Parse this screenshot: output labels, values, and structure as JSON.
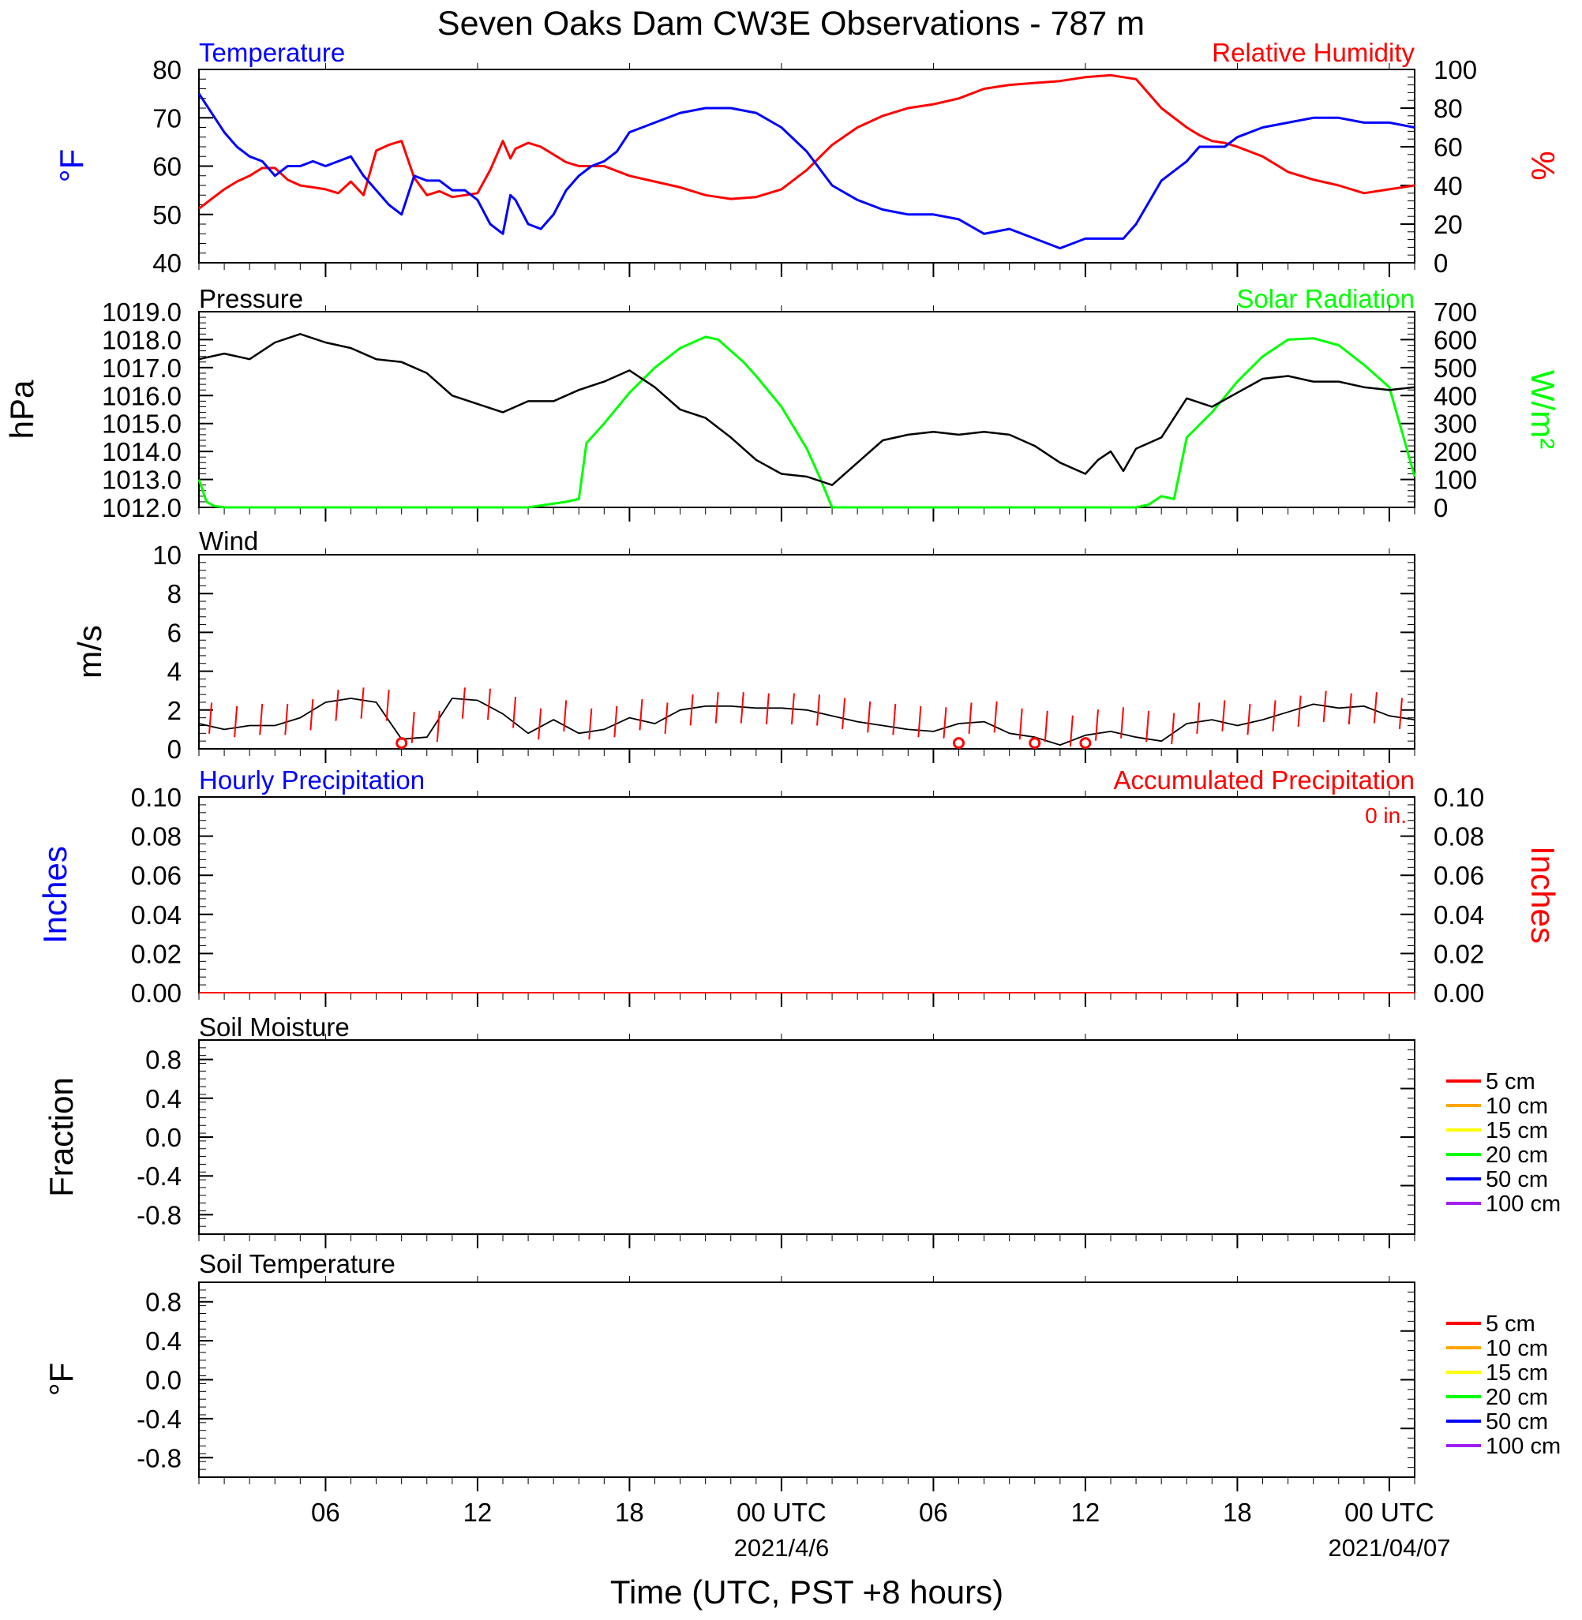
{
  "title": "Seven Oaks Dam CW3E Observations - 787 m",
  "xaxis": {
    "label": "Time (UTC, PST +8 hours)",
    "start_utc": "2021-04-05 01:00",
    "end_utc": "2021-04-07 01:00",
    "ticks": [
      {
        "hour": 6,
        "label": "06"
      },
      {
        "hour": 12,
        "label": "12"
      },
      {
        "hour": 18,
        "label": "18"
      },
      {
        "hour": 24,
        "label": "00 UTC",
        "date": "2021/4/6"
      },
      {
        "hour": 30,
        "label": "06"
      },
      {
        "hour": 36,
        "label": "12"
      },
      {
        "hour": 42,
        "label": "18"
      },
      {
        "hour": 48,
        "label": "00 UTC",
        "date": "2021/04/07"
      }
    ]
  },
  "colors": {
    "temperature": "#0000ff",
    "humidity": "#ff0000",
    "pressure": "#000000",
    "solar": "#00ff00",
    "wind": "#000000",
    "wind_barb": "#ff0000",
    "precip_hourly": "#0000ff",
    "precip_accum": "#ff0000"
  },
  "panels": {
    "temp_rh": {
      "left_title": "Temperature",
      "right_title": "Relative Humidity",
      "left_unit": "°F",
      "right_unit": "%",
      "left_ticks": [
        "40",
        "50",
        "60",
        "70",
        "80"
      ],
      "right_ticks": [
        "0",
        "20",
        "40",
        "60",
        "80",
        "100"
      ]
    },
    "pressure_solar": {
      "left_title": "Pressure",
      "right_title": "Solar Radiation",
      "left_unit": "hPa",
      "right_unit": "W/m²",
      "left_ticks": [
        "1012.0",
        "1013.0",
        "1014.0",
        "1015.0",
        "1016.0",
        "1017.0",
        "1018.0",
        "1019.0"
      ],
      "right_ticks": [
        "0",
        "100",
        "200",
        "300",
        "400",
        "500",
        "600",
        "700"
      ]
    },
    "wind": {
      "left_title": "Wind",
      "left_unit": "m/s",
      "left_ticks": [
        "0",
        "2",
        "4",
        "6",
        "8",
        "10"
      ]
    },
    "precip": {
      "left_title": "Hourly Precipitation",
      "right_title": "Accumulated Precipitation",
      "accum_text": "0 in.",
      "left_unit": "Inches",
      "right_unit": "Inches",
      "left_ticks": [
        "0.00",
        "0.02",
        "0.04",
        "0.06",
        "0.08",
        "0.10"
      ],
      "right_ticks": [
        "0.00",
        "0.02",
        "0.04",
        "0.06",
        "0.08",
        "0.10"
      ]
    },
    "soil_moisture": {
      "left_title": "Soil Moisture",
      "left_unit": "Fraction",
      "left_ticks": [
        "-0.8",
        "-0.4",
        "0.0",
        "0.4",
        "0.8"
      ],
      "legend": [
        {
          "label": "5 cm",
          "color": "#ff0000"
        },
        {
          "label": "10 cm",
          "color": "#ffa500"
        },
        {
          "label": "15 cm",
          "color": "#ffff00"
        },
        {
          "label": "20 cm",
          "color": "#00ff00"
        },
        {
          "label": "50 cm",
          "color": "#0000ff"
        },
        {
          "label": "100 cm",
          "color": "#a020f0"
        }
      ]
    },
    "soil_temp": {
      "left_title": "Soil Temperature",
      "left_unit": "°F",
      "left_ticks": [
        "-0.8",
        "-0.4",
        "0.0",
        "0.4",
        "0.8"
      ],
      "legend": [
        {
          "label": "5 cm",
          "color": "#ff0000"
        },
        {
          "label": "10 cm",
          "color": "#ffa500"
        },
        {
          "label": "15 cm",
          "color": "#ffff00"
        },
        {
          "label": "20 cm",
          "color": "#00ff00"
        },
        {
          "label": "50 cm",
          "color": "#0000ff"
        },
        {
          "label": "100 cm",
          "color": "#a020f0"
        }
      ]
    }
  },
  "chart_data": [
    {
      "type": "line",
      "title": "Temperature / Relative Humidity",
      "x_unit": "hours since 2021-04-05 00 UTC",
      "xlim": [
        1,
        49
      ],
      "series": [
        {
          "name": "Temperature",
          "axis": "left",
          "unit": "°F",
          "ylim": [
            40,
            80
          ],
          "x": [
            1,
            1.5,
            2,
            2.5,
            3,
            3.5,
            4,
            4.5,
            5,
            5.5,
            6,
            6.5,
            7,
            7.5,
            8,
            8.5,
            9,
            9.5,
            10,
            10.5,
            11,
            11.5,
            12,
            12.5,
            13,
            13.3,
            13.5,
            14,
            14.5,
            15,
            15.5,
            16,
            16.5,
            17,
            17.5,
            18,
            19,
            20,
            21,
            22,
            23,
            24,
            25,
            26,
            27,
            28,
            29,
            30,
            31,
            32,
            33,
            34,
            35,
            36,
            37,
            37.5,
            38,
            39,
            40,
            40.5,
            41,
            41.5,
            42,
            43,
            44,
            45,
            46,
            47,
            48,
            49
          ],
          "y": [
            75,
            71,
            67,
            64,
            62,
            61,
            58,
            60,
            60,
            61,
            60,
            61,
            62,
            58,
            55,
            52,
            50,
            58,
            57,
            57,
            55,
            55,
            53,
            48,
            46,
            54,
            53,
            48,
            47,
            50,
            55,
            58,
            60,
            61,
            63,
            67,
            69,
            71,
            72,
            72,
            71,
            68,
            63,
            56,
            53,
            51,
            50,
            50,
            49,
            46,
            47,
            45,
            43,
            45,
            45,
            45,
            48,
            57,
            61,
            64,
            64,
            64,
            66,
            68,
            69,
            70,
            70,
            69,
            69,
            68
          ]
        },
        {
          "name": "Relative Humidity",
          "axis": "right",
          "unit": "%",
          "ylim": [
            0,
            100
          ],
          "x": [
            1,
            1.5,
            2,
            2.5,
            3,
            3.5,
            4,
            4.5,
            5,
            5.5,
            6,
            6.5,
            7,
            7.5,
            8,
            8.5,
            9,
            9.5,
            10,
            10.5,
            11,
            11.5,
            12,
            12.5,
            13,
            13.3,
            13.5,
            14,
            14.5,
            15,
            15.5,
            16,
            17,
            18,
            19,
            20,
            21,
            22,
            23,
            24,
            25,
            26,
            27,
            28,
            29,
            30,
            31,
            32,
            33,
            34,
            35,
            36,
            37,
            38,
            39,
            40,
            40.5,
            41,
            41.5,
            42,
            43,
            44,
            45,
            46,
            47,
            48,
            49
          ],
          "y": [
            28,
            33,
            38,
            42,
            45,
            49,
            49,
            43,
            40,
            39,
            38,
            36,
            42,
            35,
            58,
            61,
            63,
            44,
            35,
            37,
            34,
            35,
            36,
            48,
            63,
            54,
            59,
            62,
            60,
            56,
            52,
            50,
            50,
            45,
            42,
            39,
            35,
            33,
            34,
            38,
            48,
            61,
            70,
            76,
            80,
            82,
            85,
            90,
            92,
            93,
            94,
            96,
            97,
            95,
            80,
            70,
            66,
            63,
            62,
            60,
            55,
            47,
            43,
            40,
            36,
            38,
            40
          ]
        }
      ]
    },
    {
      "type": "line",
      "title": "Pressure / Solar Radiation",
      "x_unit": "hours since 2021-04-05 00 UTC",
      "xlim": [
        1,
        49
      ],
      "series": [
        {
          "name": "Pressure",
          "axis": "left",
          "unit": "hPa",
          "ylim": [
            1012,
            1019
          ],
          "x": [
            1,
            2,
            3,
            4,
            5,
            6,
            7,
            8,
            9,
            10,
            11,
            12,
            13,
            14,
            15,
            16,
            17,
            18,
            19,
            20,
            21,
            22,
            23,
            24,
            25,
            26,
            27,
            28,
            29,
            30,
            31,
            32,
            33,
            34,
            35,
            36,
            36.5,
            37,
            37.5,
            38,
            39,
            40,
            41,
            42,
            43,
            44,
            45,
            46,
            47,
            48,
            49
          ],
          "y": [
            1017.3,
            1017.5,
            1017.3,
            1017.9,
            1018.2,
            1017.9,
            1017.7,
            1017.3,
            1017.2,
            1016.8,
            1016.0,
            1015.7,
            1015.4,
            1015.8,
            1015.8,
            1016.2,
            1016.5,
            1016.9,
            1016.3,
            1015.5,
            1015.2,
            1014.5,
            1013.7,
            1013.2,
            1013.1,
            1012.8,
            1013.6,
            1014.4,
            1014.6,
            1014.7,
            1014.6,
            1014.7,
            1014.6,
            1014.2,
            1013.6,
            1013.2,
            1013.7,
            1014.0,
            1013.3,
            1014.1,
            1014.5,
            1015.9,
            1015.6,
            1016.1,
            1016.6,
            1016.7,
            1016.5,
            1016.5,
            1016.3,
            1016.2,
            1016.3
          ]
        },
        {
          "name": "Solar Radiation",
          "axis": "right",
          "unit": "W/m²",
          "ylim": [
            0,
            700
          ],
          "x": [
            1,
            1.3,
            1.6,
            2,
            5,
            10,
            14,
            15.5,
            16,
            16.3,
            17,
            18,
            19,
            20,
            21,
            21.5,
            22,
            22.5,
            23,
            24,
            25,
            25.5,
            26,
            30,
            35,
            38,
            38.5,
            39,
            39.5,
            40,
            41,
            42,
            43,
            44,
            45,
            46,
            47,
            48,
            49
          ],
          "y": [
            100,
            20,
            5,
            0,
            0,
            0,
            0,
            20,
            30,
            230,
            300,
            410,
            500,
            570,
            610,
            600,
            560,
            520,
            470,
            360,
            210,
            110,
            0,
            0,
            0,
            0,
            10,
            40,
            30,
            250,
            340,
            450,
            540,
            600,
            605,
            580,
            510,
            430,
            110
          ]
        }
      ]
    },
    {
      "type": "line",
      "title": "Wind",
      "x_unit": "hours since 2021-04-05 00 UTC",
      "xlim": [
        1,
        49
      ],
      "series": [
        {
          "name": "Wind speed",
          "axis": "left",
          "unit": "m/s",
          "ylim": [
            0,
            10
          ],
          "x": [
            1,
            2,
            3,
            4,
            5,
            6,
            7,
            8,
            9,
            10,
            11,
            12,
            13,
            14,
            15,
            16,
            17,
            18,
            19,
            20,
            21,
            22,
            23,
            24,
            25,
            26,
            27,
            28,
            29,
            30,
            31,
            32,
            33,
            34,
            35,
            36,
            37,
            38,
            39,
            40,
            41,
            42,
            43,
            44,
            45,
            46,
            47,
            48,
            49
          ],
          "y": [
            1.3,
            1.0,
            1.2,
            1.2,
            1.6,
            2.4,
            2.6,
            2.4,
            0.5,
            0.6,
            2.6,
            2.5,
            1.8,
            0.8,
            1.5,
            0.8,
            1.0,
            1.6,
            1.3,
            2.0,
            2.2,
            2.2,
            2.1,
            2.1,
            2.0,
            1.7,
            1.4,
            1.2,
            1.0,
            0.9,
            1.3,
            1.4,
            0.8,
            0.6,
            0.2,
            0.7,
            0.9,
            0.6,
            0.4,
            1.3,
            1.5,
            1.2,
            1.5,
            1.9,
            2.3,
            2.1,
            2.2,
            1.7,
            1.5
          ]
        }
      ],
      "calm_markers_hours": [
        9,
        31,
        34,
        36
      ]
    },
    {
      "type": "line",
      "title": "Hourly Precipitation / Accumulated Precipitation",
      "x_unit": "hours since 2021-04-05 00 UTC",
      "xlim": [
        1,
        49
      ],
      "series": [
        {
          "name": "Hourly Precipitation",
          "axis": "left",
          "unit": "Inches",
          "ylim": [
            0,
            0.1
          ],
          "x": [
            1,
            49
          ],
          "y": [
            0,
            0
          ]
        },
        {
          "name": "Accumulated Precipitation",
          "axis": "right",
          "unit": "Inches",
          "ylim": [
            0,
            0.1
          ],
          "x": [
            1,
            49
          ],
          "y": [
            0,
            0
          ]
        }
      ]
    },
    {
      "type": "line",
      "title": "Soil Moisture",
      "ylim": [
        -1,
        1
      ],
      "series": []
    },
    {
      "type": "line",
      "title": "Soil Temperature",
      "ylim": [
        -1,
        1
      ],
      "series": []
    }
  ]
}
